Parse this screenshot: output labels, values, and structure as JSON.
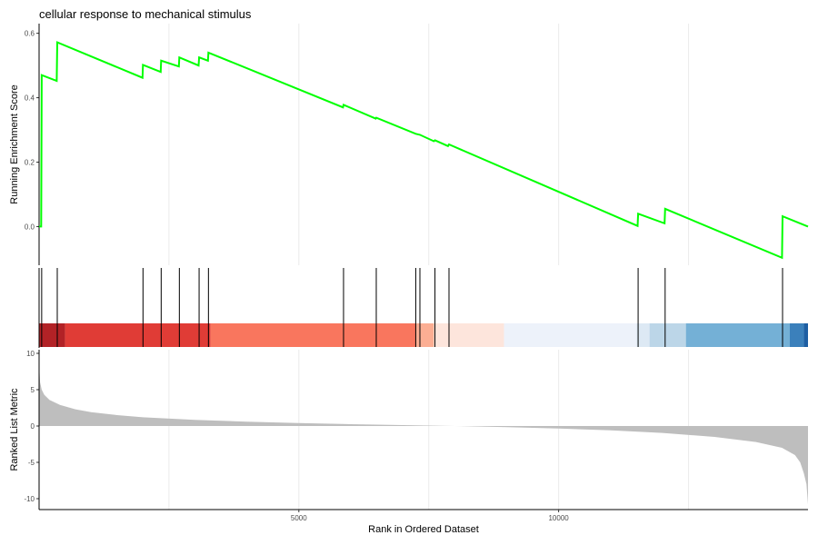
{
  "chart_data": {
    "type": "line",
    "title": "cellular response to mechanical stimulus",
    "xlabel": "Rank in Ordered Dataset",
    "xlim": [
      0,
      14800
    ],
    "x_ticks": [
      5000,
      10000
    ],
    "x_tick_labels": [
      "5000",
      "10000"
    ],
    "grid_x": [
      2500,
      5000,
      7500,
      10000,
      12500
    ],
    "colors": {
      "line": "#00ff00",
      "hits": "#000000",
      "metric_fill": "#bebebe",
      "grid": "#ebebeb"
    },
    "enrichment": {
      "ylabel": "Running Enrichment Score",
      "ylim": [
        -0.12,
        0.63
      ],
      "y_ticks": [
        0.6,
        0.4,
        0.2,
        0.0
      ],
      "y_tick_labels": [
        "0.6",
        "0.4",
        "0.2",
        "0.0"
      ],
      "points": [
        [
          0,
          0.0
        ],
        [
          40,
          0.0
        ],
        [
          50,
          0.47
        ],
        [
          340,
          0.452
        ],
        [
          350,
          0.572
        ],
        [
          1990,
          0.462
        ],
        [
          2000,
          0.502
        ],
        [
          2340,
          0.48
        ],
        [
          2350,
          0.515
        ],
        [
          2690,
          0.497
        ],
        [
          2700,
          0.525
        ],
        [
          3070,
          0.5
        ],
        [
          3080,
          0.525
        ],
        [
          3250,
          0.515
        ],
        [
          3260,
          0.54
        ],
        [
          5850,
          0.37
        ],
        [
          5860,
          0.378
        ],
        [
          6480,
          0.335
        ],
        [
          6490,
          0.338
        ],
        [
          7250,
          0.288
        ],
        [
          7330,
          0.285
        ],
        [
          7600,
          0.265
        ],
        [
          7620,
          0.268
        ],
        [
          7870,
          0.25
        ],
        [
          7890,
          0.255
        ],
        [
          11520,
          0.002
        ],
        [
          11530,
          0.04
        ],
        [
          12040,
          0.01
        ],
        [
          12050,
          0.055
        ],
        [
          14300,
          -0.097
        ],
        [
          14310,
          0.032
        ],
        [
          14800,
          0.0
        ]
      ]
    },
    "hits": [
      0,
      50,
      350,
      2000,
      2350,
      2700,
      3080,
      3260,
      5860,
      6490,
      7250,
      7330,
      7620,
      7890,
      11530,
      12050,
      14310
    ],
    "color_bar": [
      {
        "from": 0,
        "to": 500,
        "color": "#b22226"
      },
      {
        "from": 500,
        "to": 3300,
        "color": "#e03c36"
      },
      {
        "from": 3300,
        "to": 7250,
        "color": "#f9765e"
      },
      {
        "from": 7250,
        "to": 7600,
        "color": "#fcae93"
      },
      {
        "from": 7600,
        "to": 8950,
        "color": "#fde5dc"
      },
      {
        "from": 8950,
        "to": 11500,
        "color": "#edf2fa"
      },
      {
        "from": 11500,
        "to": 11750,
        "color": "#dde9f4"
      },
      {
        "from": 11750,
        "to": 12450,
        "color": "#bcd6e8"
      },
      {
        "from": 12450,
        "to": 14450,
        "color": "#74b0d6"
      },
      {
        "from": 14450,
        "to": 14720,
        "color": "#3b80bb"
      },
      {
        "from": 14720,
        "to": 14800,
        "color": "#1d5ea3"
      }
    ],
    "ranked_metric": {
      "ylabel": "Ranked List Metric",
      "ylim": [
        -11.5,
        10.5
      ],
      "y_ticks": [
        10,
        5,
        0,
        -5,
        -10
      ],
      "y_tick_labels": [
        "10",
        "5",
        "0",
        "-5",
        "-10"
      ],
      "points": [
        [
          0,
          8.5
        ],
        [
          20,
          6.0
        ],
        [
          50,
          5.0
        ],
        [
          100,
          4.3
        ],
        [
          200,
          3.6
        ],
        [
          400,
          2.9
        ],
        [
          700,
          2.3
        ],
        [
          1000,
          1.9
        ],
        [
          1500,
          1.5
        ],
        [
          2000,
          1.2
        ],
        [
          3000,
          0.85
        ],
        [
          4000,
          0.6
        ],
        [
          5000,
          0.4
        ],
        [
          6000,
          0.25
        ],
        [
          7000,
          0.12
        ],
        [
          8000,
          0.0
        ],
        [
          9000,
          -0.15
        ],
        [
          10000,
          -0.35
        ],
        [
          11000,
          -0.6
        ],
        [
          12000,
          -0.95
        ],
        [
          13000,
          -1.5
        ],
        [
          13800,
          -2.2
        ],
        [
          14300,
          -3.0
        ],
        [
          14550,
          -4.0
        ],
        [
          14650,
          -5.0
        ],
        [
          14720,
          -6.5
        ],
        [
          14770,
          -8.0
        ],
        [
          14800,
          -10.8
        ]
      ]
    }
  }
}
